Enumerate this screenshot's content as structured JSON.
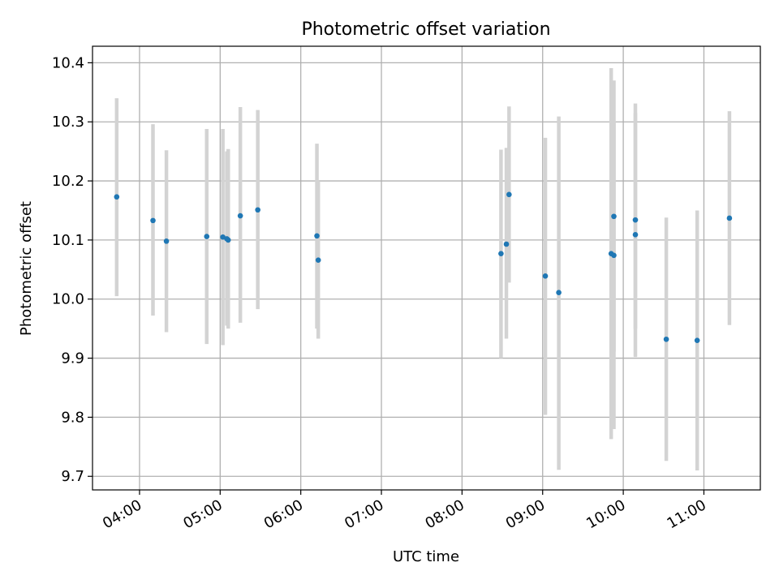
{
  "chart_data": {
    "type": "scatter",
    "title": "Photometric offset variation",
    "xlabel": "UTC time",
    "ylabel": "Photometric offset",
    "x_ticks": [
      "04:00",
      "05:00",
      "06:00",
      "07:00",
      "08:00",
      "09:00",
      "10:00",
      "11:00"
    ],
    "y_ticks": [
      "9.7",
      "9.8",
      "9.9",
      "10.0",
      "10.1",
      "10.2",
      "10.3",
      "10.4"
    ],
    "xlim": [
      "03:25",
      "11:42"
    ],
    "ylim": [
      9.677,
      10.428
    ],
    "grid": true,
    "colors": {
      "points": "#1f77b4",
      "errorbars": "#d3d3d3",
      "grid": "#b0b0b0"
    },
    "points": [
      {
        "x": "03:43",
        "y": 10.173,
        "yerr_low": 10.005,
        "yerr_high": 10.34
      },
      {
        "x": "04:10",
        "y": 10.133,
        "yerr_low": 9.972,
        "yerr_high": 10.296
      },
      {
        "x": "04:20",
        "y": 10.098,
        "yerr_low": 9.944,
        "yerr_high": 10.252
      },
      {
        "x": "04:50",
        "y": 10.106,
        "yerr_low": 9.924,
        "yerr_high": 10.288
      },
      {
        "x": "05:02",
        "y": 10.105,
        "yerr_low": 9.922,
        "yerr_high": 10.288
      },
      {
        "x": "05:06",
        "y": 10.1,
        "yerr_low": 9.95,
        "yerr_high": 10.254
      },
      {
        "x": "05:05",
        "y": 10.102,
        "yerr_low": 9.955,
        "yerr_high": 10.25
      },
      {
        "x": "05:15",
        "y": 10.141,
        "yerr_low": 9.96,
        "yerr_high": 10.325
      },
      {
        "x": "05:28",
        "y": 10.151,
        "yerr_low": 9.983,
        "yerr_high": 10.32
      },
      {
        "x": "06:12",
        "y": 10.107,
        "yerr_low": 9.95,
        "yerr_high": 10.263
      },
      {
        "x": "06:13",
        "y": 10.066,
        "yerr_low": 9.933,
        "yerr_high": 10.2
      },
      {
        "x": "08:29",
        "y": 10.077,
        "yerr_low": 9.9,
        "yerr_high": 10.253
      },
      {
        "x": "08:33",
        "y": 10.093,
        "yerr_low": 9.933,
        "yerr_high": 10.256
      },
      {
        "x": "08:35",
        "y": 10.177,
        "yerr_low": 10.028,
        "yerr_high": 10.326
      },
      {
        "x": "09:02",
        "y": 10.039,
        "yerr_low": 9.804,
        "yerr_high": 10.273
      },
      {
        "x": "09:12",
        "y": 10.011,
        "yerr_low": 9.711,
        "yerr_high": 10.309
      },
      {
        "x": "09:51",
        "y": 10.077,
        "yerr_low": 9.763,
        "yerr_high": 10.391
      },
      {
        "x": "09:53",
        "y": 10.14,
        "yerr_low": 9.911,
        "yerr_high": 10.37
      },
      {
        "x": "09:53",
        "y": 10.074,
        "yerr_low": 9.78,
        "yerr_high": 10.3
      },
      {
        "x": "10:09",
        "y": 10.134,
        "yerr_low": 9.902,
        "yerr_high": 10.331
      },
      {
        "x": "10:09",
        "y": 10.109,
        "yerr_low": 9.95,
        "yerr_high": 10.315
      },
      {
        "x": "10:32",
        "y": 9.932,
        "yerr_low": 9.726,
        "yerr_high": 10.138
      },
      {
        "x": "10:55",
        "y": 9.93,
        "yerr_low": 9.71,
        "yerr_high": 10.15
      },
      {
        "x": "11:19",
        "y": 10.137,
        "yerr_low": 9.956,
        "yerr_high": 10.318
      }
    ]
  }
}
